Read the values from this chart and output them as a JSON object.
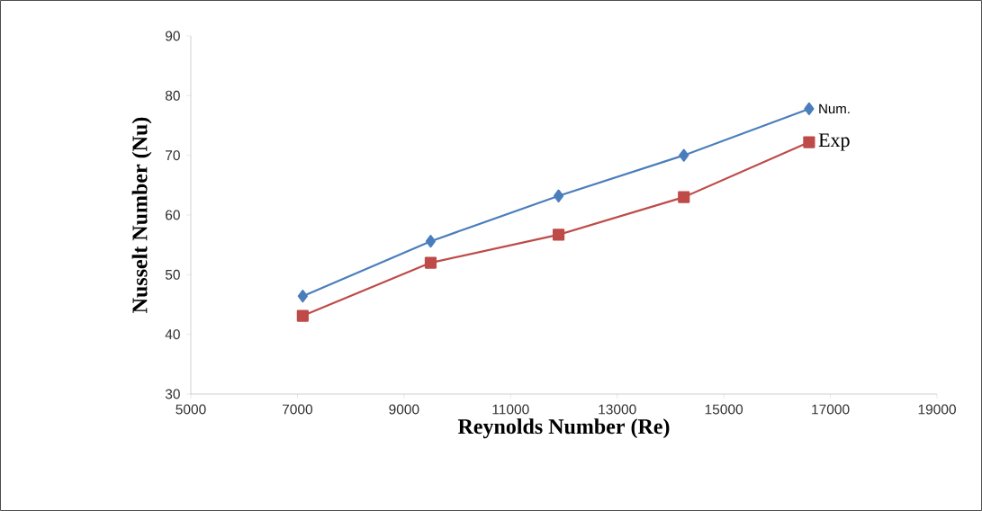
{
  "chart_data": {
    "type": "line",
    "xlabel": "Reynolds Number (Re)",
    "ylabel": "Nusselt Number (Nu)",
    "x": [
      7100,
      9500,
      11900,
      14250,
      16600
    ],
    "xlim": [
      5000,
      19000
    ],
    "xticks": [
      5000,
      7000,
      9000,
      11000,
      13000,
      15000,
      17000,
      19000
    ],
    "ylim": [
      30,
      90
    ],
    "yticks": [
      30,
      40,
      50,
      60,
      70,
      80,
      90
    ],
    "series": [
      {
        "name": "Num.",
        "color": "#4a7ebb",
        "marker": "diamond",
        "values": [
          46.4,
          55.6,
          63.2,
          70.0,
          77.8
        ]
      },
      {
        "name": "Exp",
        "color": "#be4b48",
        "marker": "square",
        "values": [
          43.1,
          52.0,
          56.7,
          63.0,
          72.2
        ]
      }
    ]
  }
}
